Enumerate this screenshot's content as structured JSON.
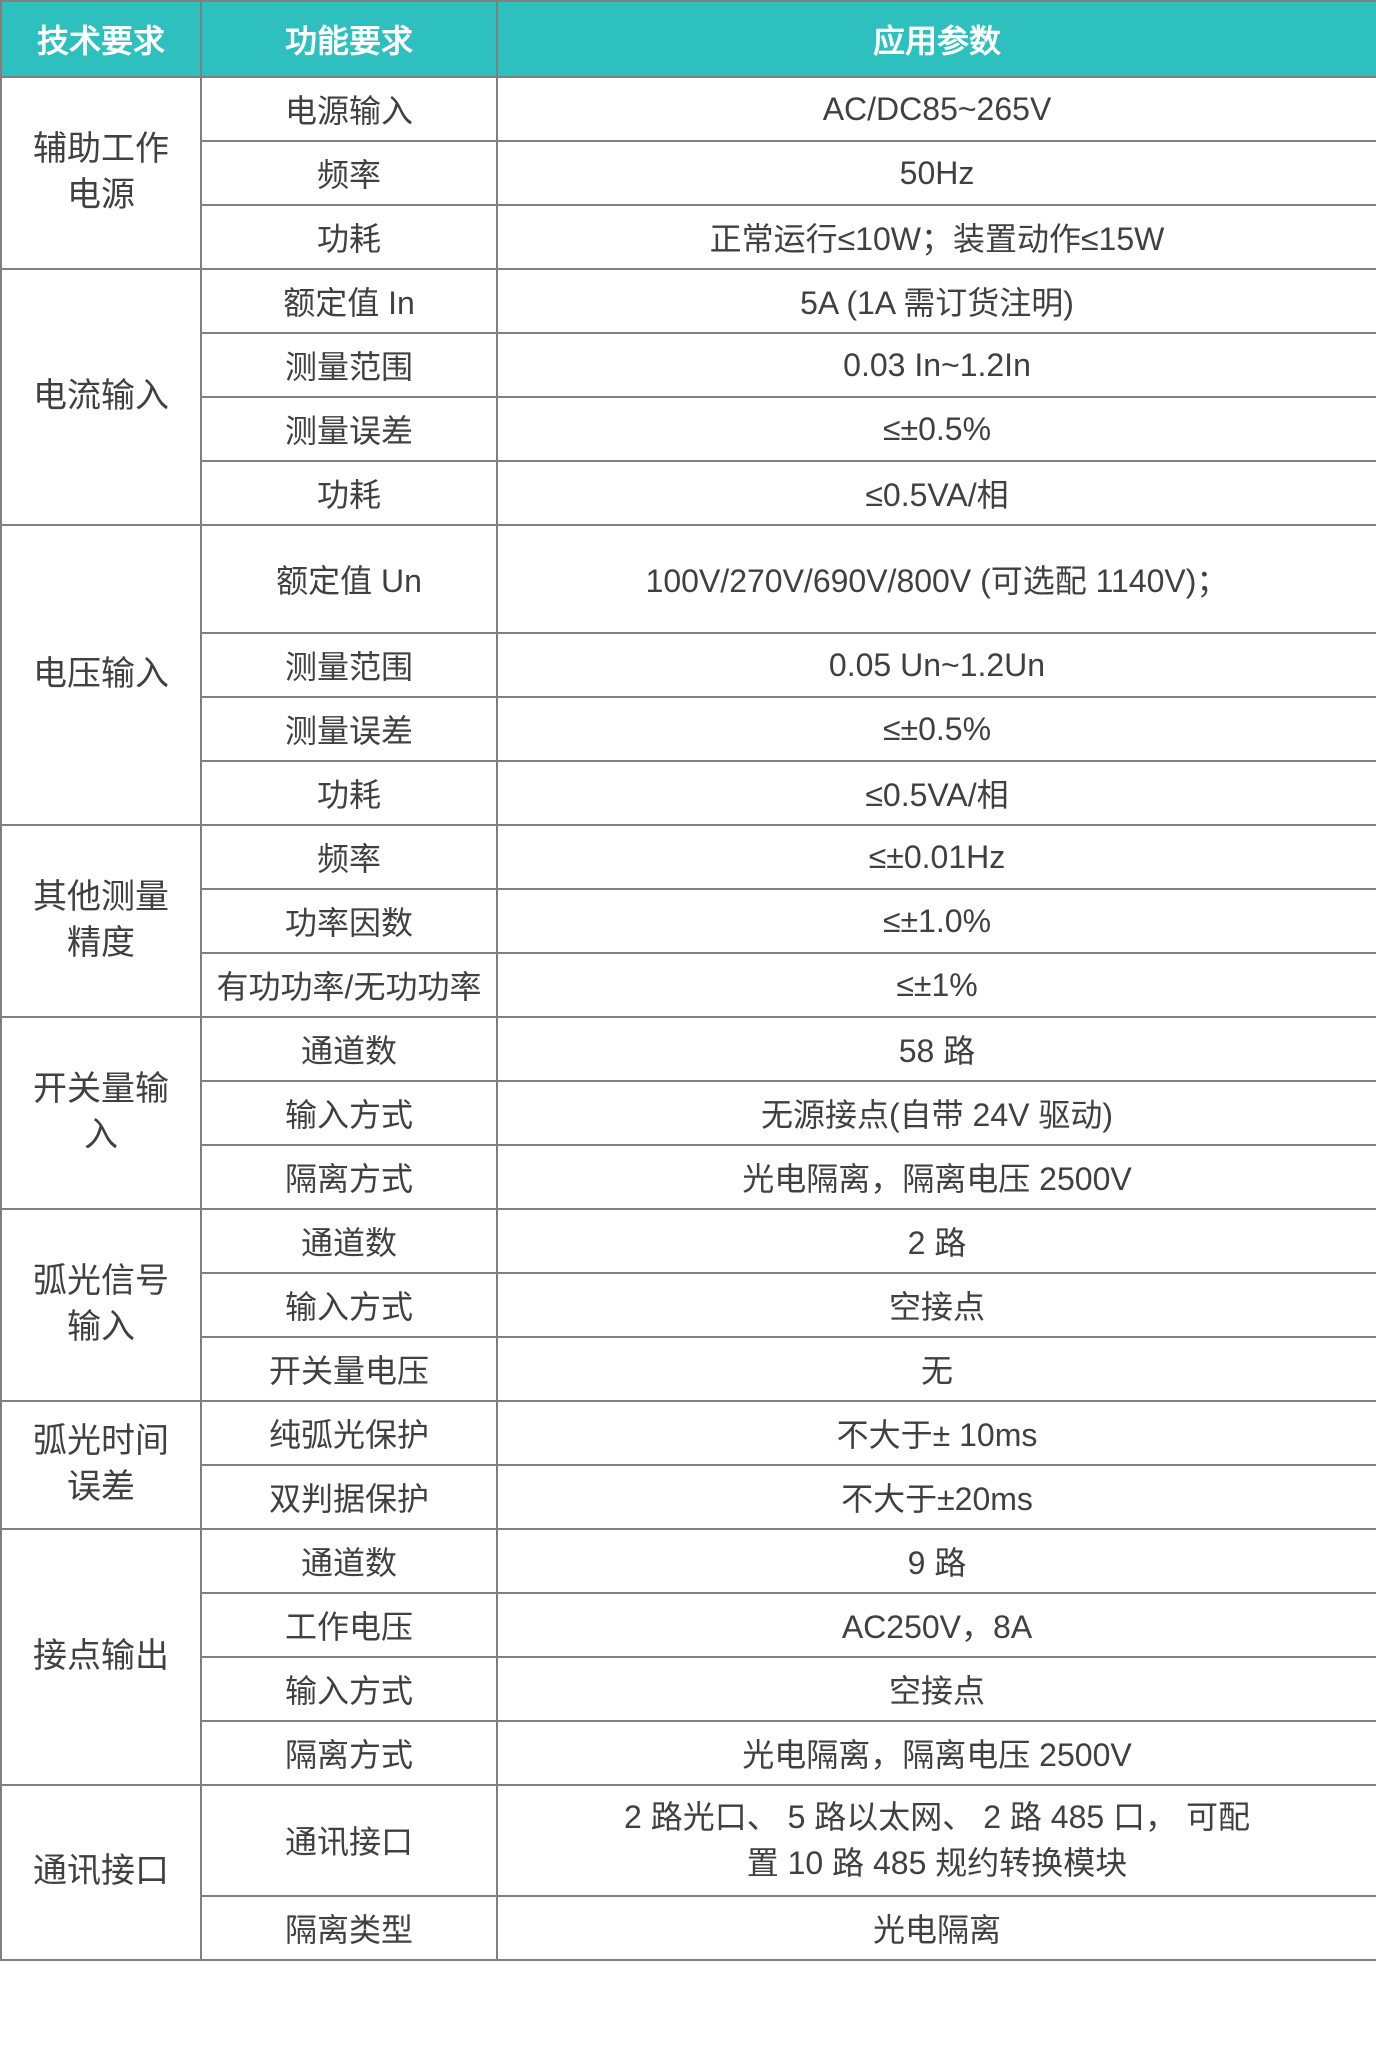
{
  "header": {
    "col1": "技术要求",
    "col2": "功能要求",
    "col3": "应用参数"
  },
  "groups": [
    {
      "label": "辅助工作\n电源",
      "rows": [
        {
          "fn": "电源输入",
          "val": "AC/DC85~265V"
        },
        {
          "fn": "频率",
          "val": "50Hz"
        },
        {
          "fn": "功耗",
          "val": "正常运行≤10W；装置动作≤15W"
        }
      ]
    },
    {
      "label": "电流输入",
      "rows": [
        {
          "fn": "额定值 In",
          "val": "5A (1A 需订货注明)"
        },
        {
          "fn": "测量范围",
          "val": "0.03 In~1.2In"
        },
        {
          "fn": "测量误差",
          "val": "≤±0.5%"
        },
        {
          "fn": "功耗",
          "val": "≤0.5VA/相"
        }
      ]
    },
    {
      "label": "电压输入",
      "rows": [
        {
          "fn": "额定值 Un",
          "val": "100V/270V/690V/800V (可选配 1140V)；",
          "tall": true
        },
        {
          "fn": "测量范围",
          "val": "0.05 Un~1.2Un"
        },
        {
          "fn": "测量误差",
          "val": "≤±0.5%"
        },
        {
          "fn": "功耗",
          "val": "≤0.5VA/相"
        }
      ]
    },
    {
      "label": "其他测量\n精度",
      "rows": [
        {
          "fn": "频率",
          "val": "≤±0.01Hz"
        },
        {
          "fn": "功率因数",
          "val": "≤±1.0%"
        },
        {
          "fn": "有功功率/无功功率",
          "val": "≤±1%"
        }
      ]
    },
    {
      "label": "开关量输\n入",
      "rows": [
        {
          "fn": "通道数",
          "val": "58 路"
        },
        {
          "fn": "输入方式",
          "val": "无源接点(自带 24V 驱动)"
        },
        {
          "fn": "隔离方式",
          "val": "光电隔离，隔离电压 2500V"
        }
      ]
    },
    {
      "label": "弧光信号\n输入",
      "rows": [
        {
          "fn": "通道数",
          "val": "2 路"
        },
        {
          "fn": "输入方式",
          "val": "空接点"
        },
        {
          "fn": "开关量电压",
          "val": "无"
        }
      ]
    },
    {
      "label": "弧光时间\n误差",
      "rows": [
        {
          "fn": "纯弧光保护",
          "val": "不大于± 10ms"
        },
        {
          "fn": "双判据保护",
          "val": "不大于±20ms"
        }
      ]
    },
    {
      "label": "接点输出",
      "rows": [
        {
          "fn": "通道数",
          "val": "9 路"
        },
        {
          "fn": "工作电压",
          "val": "AC250V，8A"
        },
        {
          "fn": "输入方式",
          "val": "空接点"
        },
        {
          "fn": "隔离方式",
          "val": "光电隔离，隔离电压 2500V"
        }
      ]
    },
    {
      "label": "通讯接口",
      "rows": [
        {
          "fn": "通讯接口",
          "val": "2 路光口、 5 路以太网、 2 路 485 口， 可配\n置 10 路 485 规约转换模块",
          "mult": true
        },
        {
          "fn": "隔离类型",
          "val": "光电隔离"
        }
      ]
    }
  ]
}
